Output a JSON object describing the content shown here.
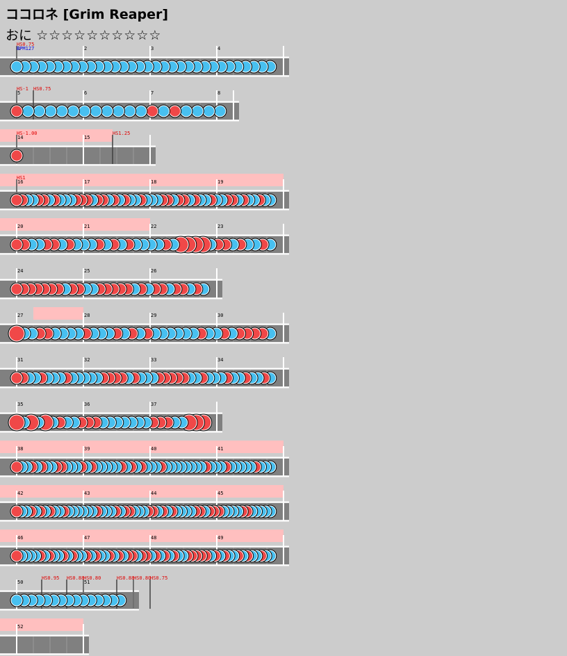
{
  "song": {
    "title": "ココロネ [Grim Reaper]",
    "difficulty": "おに",
    "stars": "☆☆☆☆☆☆☆☆☆☆"
  },
  "colors": {
    "don": "#f04848",
    "ka": "#48c0f0",
    "gogo": "#ffbfbf",
    "lane": "#808080",
    "background": "#cccccc"
  },
  "rows": [
    {
      "measures": [
        1,
        2,
        3,
        4
      ],
      "beats": 16,
      "gogo": [],
      "events": [
        {
          "beat": 0,
          "text": "HS0.75"
        }
      ],
      "bpm": [
        {
          "beat": 0,
          "text": "BPM127"
        }
      ],
      "notes": "kkkkkkkkkkkkkkkkkkkkkkkkkkkkkkkk"
    },
    {
      "measures": [
        5,
        6,
        7,
        8
      ],
      "beats": 13,
      "gogo": [],
      "events": [
        {
          "beat": 0,
          "text": "HS-1"
        },
        {
          "beat": 1,
          "text": "HS0.75"
        }
      ],
      "bpm": [],
      "notes": "dkkkkkkkkkkkdkdkkkk"
    },
    {
      "measures": [
        14,
        15
      ],
      "beats": 8,
      "gogo": [
        [
          0,
          5.75
        ]
      ],
      "events": [
        {
          "beat": 0,
          "text": "HS-1.00"
        },
        {
          "beat": 5.75,
          "text": "HS1.25"
        }
      ],
      "bpm": [],
      "notes": "d"
    },
    {
      "measures": [
        16,
        17,
        18,
        19
      ],
      "beats": 16,
      "gogo": [
        [
          0,
          16
        ]
      ],
      "events": [
        {
          "beat": 0,
          "text": "HS1"
        }
      ],
      "bpm": [],
      "notes": "ddkkddkdkkkdddkddkdkdkkdkkkddkddkdkkdkkddkdkkdkk"
    },
    {
      "measures": [
        20,
        21,
        22,
        23
      ],
      "beats": 16,
      "gogo": [
        [
          0,
          8
        ]
      ],
      "events": [],
      "bpm": [],
      "notes": "ddkkddkdkkkdkdkdkkkkdkDDDDkddkdkkdk"
    },
    {
      "measures": [
        24,
        25,
        26
      ],
      "beats": 12,
      "gogo": [],
      "events": [],
      "bpm": [],
      "notes": "dddddddkddkkdddddkdkddkddkdk"
    },
    {
      "measures": [
        27,
        28,
        29,
        30
      ],
      "beats": 16,
      "gogo": [
        [
          1,
          4
        ]
      ],
      "events": [],
      "bpm": [],
      "notes": "Dkkddkkkkdkkkdkdkdkkkkkkdkkdkddddk"
    },
    {
      "measures": [
        31,
        32,
        33,
        34
      ],
      "beats": 16,
      "gogo": [],
      "events": [],
      "bpm": [],
      "notes": "ddkkdkkkdkkkkkddddkdkkkdddddkkdkkkdkkdkkdk"
    },
    {
      "measures": [
        35,
        36,
        37
      ],
      "beats": 12,
      "gogo": [],
      "events": [],
      "bpm": [],
      "notes": "DkDkDkdkkdddkkkkkkkdddkkDDD"
    },
    {
      "measures": [
        38,
        39,
        40,
        41
      ],
      "beats": 16,
      "gogo": [
        [
          0,
          16
        ]
      ],
      "events": [],
      "bpm": [],
      "notes": "dkkdkdkkddkkkdkdkkkkkdkdkdkkkdkkkkkkkkdkkkdkkkkkdkkk"
    },
    {
      "measures": [
        42,
        43,
        44,
        45
      ],
      "beats": 16,
      "gogo": [
        [
          0,
          16
        ]
      ],
      "events": [],
      "bpm": [],
      "notes": "dkkdkdkdkkdkkkkkkdkkkdkddkkkddkdkdkkkkddkdddkkkkddkkkkk"
    },
    {
      "measures": [
        46,
        47,
        48,
        49
      ],
      "beats": 16,
      "gogo": [
        [
          0,
          16
        ]
      ],
      "events": [],
      "bpm": [],
      "notes": "dkkkkdkdkkdkdkkdkdkkdkdkddkddkdkdkdkkdddddkdkdkkdkdkkdkk"
    },
    {
      "measures": [
        50,
        51
      ],
      "beats": 7,
      "gogo": [],
      "events": [
        {
          "beat": 1.5,
          "text": "HS0.95"
        },
        {
          "beat": 3,
          "text": "HS0.88"
        },
        {
          "beat": 4,
          "text": "HS0.80"
        },
        {
          "beat": 6,
          "text": "HS0.88"
        },
        {
          "beat": 7,
          "text": "HS0.80"
        },
        {
          "beat": 8,
          "text": "HS0.75"
        }
      ],
      "bpm": [],
      "notes": "kkkkkkkkkkkkkkk"
    },
    {
      "measures": [
        52
      ],
      "beats": 4,
      "gogo": [
        [
          0,
          4
        ]
      ],
      "events": [],
      "bpm": [],
      "notes": ""
    }
  ]
}
